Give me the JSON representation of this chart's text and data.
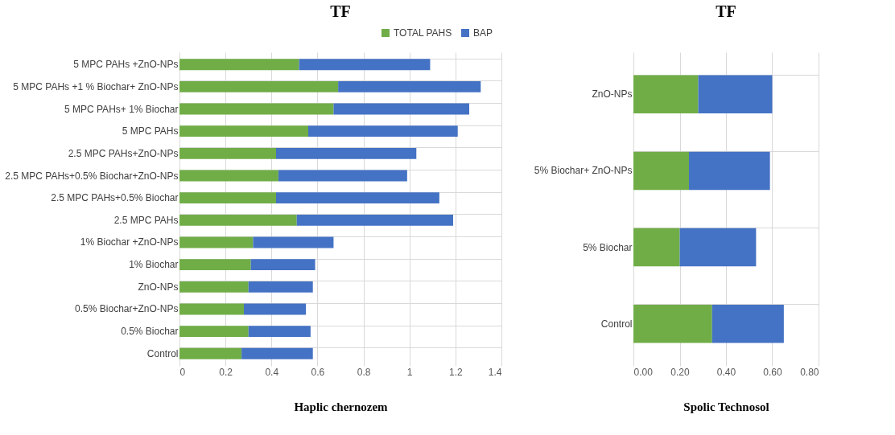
{
  "chart_data": [
    {
      "type": "bar",
      "orientation": "horizontal",
      "stacked": true,
      "title": "TF",
      "xlabel": "Haplic chernozem",
      "categories": [
        "5 MPC PAHs +ZnO-NPs",
        "5 MPC PAHs +1 % Biochar+ ZnO-NPs",
        "5 MPC PAHs+ 1% Biochar",
        "5 MPC PAHs",
        "2.5 MPC PAHs+ZnO-NPs",
        "2.5 MPC PAHs+0.5% Biochar+ZnO-NPs",
        "2.5 MPC PAHs+0.5% Biochar",
        "2.5 MPC PAHs",
        "1% Biochar +ZnO-NPs",
        "1% Biochar",
        "ZnO-NPs",
        "0.5% Biochar+ZnO-NPs",
        "0.5% Biochar",
        "Control"
      ],
      "series": [
        {
          "name": "TOTAL PAHS",
          "color": "#70ad47",
          "values": [
            0.52,
            0.69,
            0.67,
            0.56,
            0.42,
            0.43,
            0.42,
            0.51,
            0.32,
            0.31,
            0.3,
            0.28,
            0.3,
            0.27
          ]
        },
        {
          "name": "BAP",
          "color": "#4472c4",
          "values": [
            0.57,
            0.62,
            0.59,
            0.65,
            0.61,
            0.56,
            0.71,
            0.68,
            0.35,
            0.28,
            0.28,
            0.27,
            0.27,
            0.31
          ]
        }
      ],
      "xlim": [
        0,
        1.4
      ],
      "xticks": [
        0,
        0.2,
        0.4,
        0.6,
        0.8,
        1,
        1.2,
        1.4
      ],
      "grid": true,
      "legend": "top right"
    },
    {
      "type": "bar",
      "orientation": "horizontal",
      "stacked": true,
      "title": "TF",
      "xlabel": "Spolic Technosol",
      "categories": [
        "ZnO-NPs",
        "5% Biochar+ ZnO-NPs",
        "5% Biochar",
        "Control"
      ],
      "series": [
        {
          "name": "TOTAL PAHS",
          "color": "#70ad47",
          "values": [
            0.28,
            0.24,
            0.2,
            0.34
          ]
        },
        {
          "name": "BAP",
          "color": "#4472c4",
          "values": [
            0.32,
            0.35,
            0.33,
            0.31
          ]
        }
      ],
      "xlim": [
        0,
        0.8
      ],
      "xticks": [
        {
          "value": 0,
          "label": "0.00"
        },
        {
          "value": 0.2,
          "label": "0.20"
        },
        {
          "value": 0.4,
          "label": "0.40"
        },
        {
          "value": 0.6,
          "label": "0.60"
        },
        {
          "value": 0.8,
          "label": "0.80"
        }
      ],
      "grid": true,
      "legend": "top right"
    }
  ]
}
